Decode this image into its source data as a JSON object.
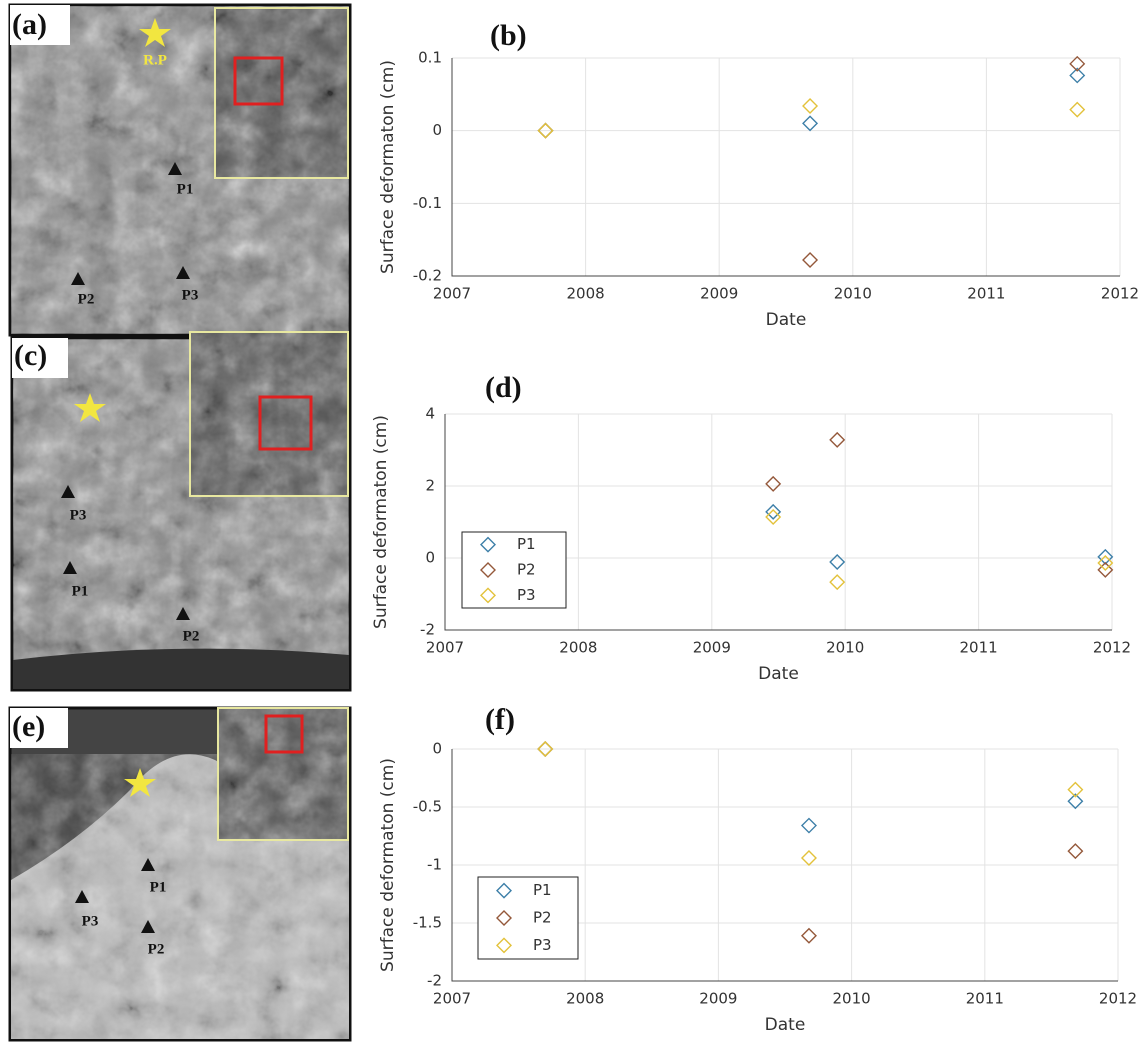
{
  "images": [
    {
      "label": "(a)",
      "marks": [
        "R.P",
        "P1",
        "P2",
        "P3"
      ]
    },
    {
      "label": "(c)",
      "marks": [
        "P3",
        "P1",
        "P2"
      ]
    },
    {
      "label": "(e)",
      "marks": [
        "P1",
        "P3",
        "P2"
      ]
    }
  ],
  "chart_data": [
    {
      "type": "scatter",
      "label": "(b)",
      "xlabel": "Date",
      "ylabel": "Surface deformaton (cm)",
      "xlim": [
        2007,
        2012
      ],
      "xticks": [
        2007,
        2008,
        2009,
        2010,
        2011,
        2012
      ],
      "ylim": [
        -0.2,
        0.1
      ],
      "yticks": [
        -0.2,
        -0.1,
        0,
        0.1
      ],
      "grid": true,
      "legend": false,
      "series": [
        {
          "color": "#3d7fa8",
          "x": [
            2007.7,
            2009.68,
            2011.68
          ],
          "values": [
            0,
            0.01,
            0.076
          ]
        },
        {
          "color": "#94583a",
          "x": [
            2007.7,
            2009.68,
            2011.68
          ],
          "values": [
            0,
            -0.178,
            0.092
          ]
        },
        {
          "color": "#e3c23b",
          "x": [
            2007.7,
            2009.68,
            2011.68
          ],
          "values": [
            0,
            0.034,
            0.029
          ]
        }
      ]
    },
    {
      "type": "scatter",
      "label": "(d)",
      "xlabel": "Date",
      "ylabel": "Surface deformaton (cm)",
      "xlim": [
        2007,
        2012
      ],
      "xticks": [
        2007,
        2008,
        2009,
        2010,
        2011,
        2012
      ],
      "ylim": [
        -2,
        4
      ],
      "yticks": [
        -2,
        0,
        2,
        4
      ],
      "grid": true,
      "legend": "lower left",
      "series": [
        {
          "name": "P1",
          "color": "#3d7fa8",
          "x": [
            2009.46,
            2009.94,
            2011.95
          ],
          "values": [
            1.28,
            -0.11,
            0.03
          ]
        },
        {
          "name": "P2",
          "color": "#94583a",
          "x": [
            2009.46,
            2009.94,
            2011.95
          ],
          "values": [
            2.06,
            3.28,
            -0.33
          ]
        },
        {
          "name": "P3",
          "color": "#e3c23b",
          "x": [
            2009.46,
            2009.94,
            2011.95
          ],
          "values": [
            1.14,
            -0.67,
            -0.14
          ]
        }
      ]
    },
    {
      "type": "scatter",
      "label": "(f)",
      "xlabel": "Date",
      "ylabel": "Surface deformaton (cm)",
      "xlim": [
        2007,
        2012
      ],
      "xticks": [
        2007,
        2008,
        2009,
        2010,
        2011,
        2012
      ],
      "ylim": [
        -2,
        0
      ],
      "yticks": [
        -2,
        -1.5,
        -1,
        -0.5,
        0
      ],
      "grid": true,
      "legend": "lower left",
      "series": [
        {
          "name": "P1",
          "color": "#3d7fa8",
          "x": [
            2007.7,
            2009.68,
            2011.68
          ],
          "values": [
            0,
            -0.66,
            -0.45
          ]
        },
        {
          "name": "P2",
          "color": "#94583a",
          "x": [
            2007.7,
            2009.68,
            2011.68
          ],
          "values": [
            0,
            -1.61,
            -0.88
          ]
        },
        {
          "name": "P3",
          "color": "#e3c23b",
          "x": [
            2007.7,
            2009.68,
            2011.68
          ],
          "values": [
            0,
            -0.94,
            -0.35
          ]
        }
      ]
    }
  ]
}
